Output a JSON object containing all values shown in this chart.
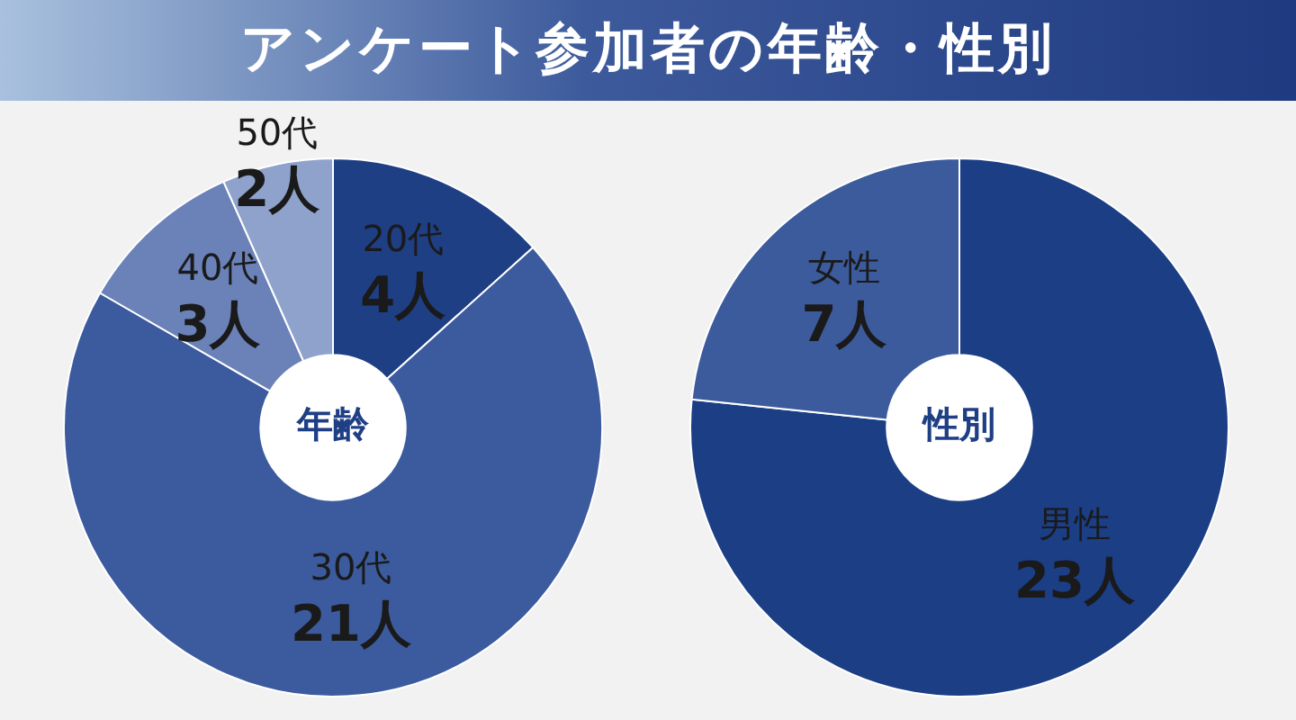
{
  "chart_data": [
    {
      "type": "donut",
      "title": "アンケート参加者の年齢・性別",
      "categories": [
        "20代",
        "30代",
        "40代",
        "50代"
      ],
      "values": [
        4,
        21,
        3,
        2
      ],
      "colors": [
        "#1f3f85",
        "#3c5b9e",
        "#6b82b9",
        "#8fa2cc"
      ],
      "value_labels": [
        "4人",
        "21人",
        "3人",
        "2人"
      ],
      "annotations": [
        "年齢"
      ],
      "legend": false
    },
    {
      "type": "donut",
      "categories": [
        "男性",
        "女性"
      ],
      "values": [
        23,
        7
      ],
      "colors": [
        "#1b3e85",
        "#3c5b9c"
      ],
      "value_labels": [
        "23人",
        "7人"
      ],
      "annotations": [
        "性別"
      ],
      "legend": false
    }
  ]
}
